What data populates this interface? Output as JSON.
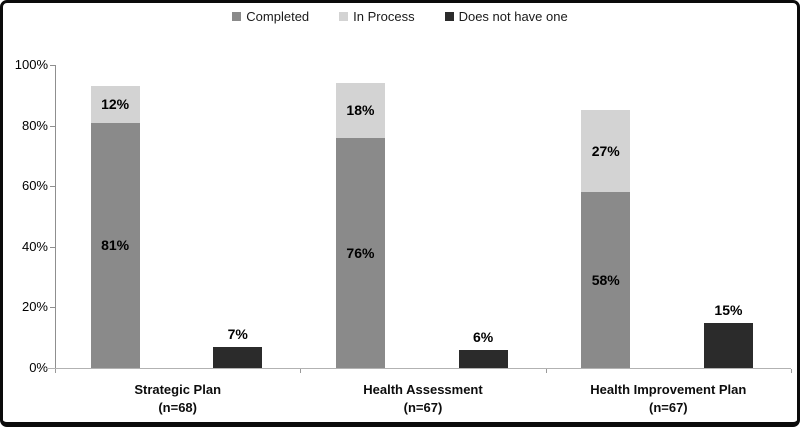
{
  "figure": {
    "background": "#ffffff",
    "border_color": "#0b0b0b"
  },
  "chart_data": {
    "type": "bar",
    "subtype": "stacked-column-with-separate-column",
    "title": "",
    "xlabel": "",
    "ylabel": "",
    "grid": false,
    "legend_position": "top",
    "categories": [
      {
        "label": "Strategic Plan",
        "sublabel": "(n=68)"
      },
      {
        "label": "Health Assessment",
        "sublabel": "(n=67)"
      },
      {
        "label": "Health Improvement Plan",
        "sublabel": "(n=67)"
      }
    ],
    "series": [
      {
        "name": "Completed",
        "color": "#8a8a8a",
        "stack": "status",
        "values": [
          81,
          76,
          58
        ],
        "labels": [
          "81%",
          "76%",
          "58%"
        ],
        "label_position": "inside"
      },
      {
        "name": "In Process",
        "color": "#d3d3d3",
        "stack": "status",
        "values": [
          12,
          18,
          27
        ],
        "labels": [
          "12%",
          "18%",
          "27%"
        ],
        "label_position": "inside"
      },
      {
        "name": "Does not have one",
        "color": "#2b2b2b",
        "stack": "none",
        "values": [
          7,
          6,
          15
        ],
        "labels": [
          "7%",
          "6%",
          "15%"
        ],
        "label_position": "above"
      }
    ],
    "y_axis": {
      "min": 0,
      "max": 100,
      "tick_step": 20,
      "tick_labels": [
        "0%",
        "20%",
        "40%",
        "60%",
        "80%",
        "100%"
      ]
    }
  }
}
